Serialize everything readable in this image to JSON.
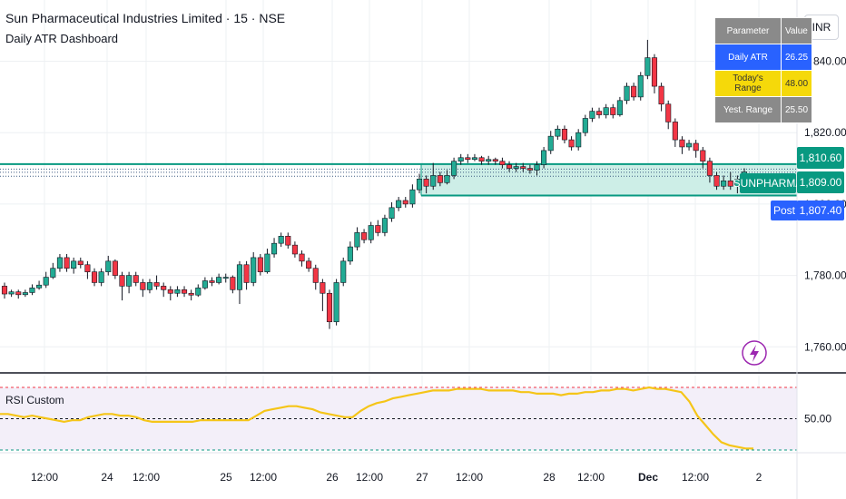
{
  "header": {
    "title": "Sun Pharmaceutical Industries Limited · 15 · NSE",
    "subtitle": "Daily ATR Dashboard"
  },
  "currency_button": "INR",
  "atr_table": {
    "header": [
      "Parameter",
      "Value"
    ],
    "rows": [
      {
        "label": "Daily ATR",
        "value": "26.25",
        "bg": "#2962ff",
        "color": "#ffffff"
      },
      {
        "label": "Today's Range",
        "value": "48.00",
        "bg": "#f5d90a",
        "color": "#333333"
      },
      {
        "label": "Yest. Range",
        "value": "25.50",
        "bg": "#8a8a8a",
        "color": "#ffffff"
      }
    ],
    "header_bg": "#8a8a8a",
    "header_color": "#ffffff"
  },
  "price_tags": {
    "upper": "1,810.60",
    "symbol": "SUNPHARMA",
    "last": "1,809.00",
    "post_label": "Post",
    "post_value": "1,807.40"
  },
  "rsi": {
    "title": "RSI Custom",
    "level_label": "50.00",
    "upper_level": 70,
    "mid_level": 50,
    "lower_level": 30,
    "values": [
      53,
      53,
      52,
      51,
      52,
      51,
      50,
      49,
      48,
      49,
      49,
      51,
      52,
      53,
      53,
      52,
      52,
      51,
      49,
      48,
      48,
      48,
      48,
      48,
      48,
      49,
      49,
      49,
      49,
      49,
      49,
      49,
      52,
      55,
      56,
      57,
      58,
      58,
      57,
      56,
      54,
      53,
      52,
      51,
      51,
      55,
      58,
      60,
      61,
      63,
      64,
      65,
      66,
      67,
      68,
      68,
      68,
      69,
      69,
      69,
      69,
      68,
      68,
      68,
      68,
      67,
      67,
      66,
      66,
      66,
      65,
      66,
      66,
      67,
      67,
      68,
      68,
      69,
      69,
      68,
      69,
      70,
      69,
      69,
      68,
      67,
      61,
      52,
      46,
      40,
      35,
      33,
      32,
      31,
      31
    ]
  },
  "colors": {
    "up": "#22ab94",
    "down": "#f23645",
    "wick": "#131722",
    "rsi_line": "#f5c518",
    "zone_fill": "#cdeee7",
    "zone_border": "#089981",
    "post_tag": "#2962ff",
    "grid": "#eef0f3"
  },
  "chart_data": [
    {
      "type": "candlestick",
      "title": "Sun Pharmaceutical Industries Limited · 15 · NSE",
      "y_axis_ticks": [
        "1,840.00",
        "1,820.00",
        "1,800.00",
        "1,780.00",
        "1,760.00"
      ],
      "x_axis_ticks": [
        "12:00",
        "24",
        "12:00",
        "25",
        "12:00",
        "26",
        "12:00",
        "27",
        "12:00",
        "28",
        "12:00",
        "Dec",
        "12:00",
        "2"
      ],
      "ylim": [
        1756,
        1847
      ],
      "candles": [
        {
          "o": 1777.0,
          "c": 1774.8,
          "h": 1778.0,
          "l": 1773.5
        },
        {
          "o": 1774.8,
          "c": 1775.4,
          "h": 1776.0,
          "l": 1774.0
        },
        {
          "o": 1775.4,
          "c": 1774.6,
          "h": 1776.0,
          "l": 1773.5
        },
        {
          "o": 1774.6,
          "c": 1775.2,
          "h": 1776.0,
          "l": 1774.0
        },
        {
          "o": 1775.2,
          "c": 1776.5,
          "h": 1777.5,
          "l": 1774.5
        },
        {
          "o": 1776.5,
          "c": 1777.3,
          "h": 1778.5,
          "l": 1776.0
        },
        {
          "o": 1777.3,
          "c": 1779.5,
          "h": 1781.0,
          "l": 1776.5
        },
        {
          "o": 1779.5,
          "c": 1782.0,
          "h": 1783.5,
          "l": 1779.0
        },
        {
          "o": 1782.0,
          "c": 1785.0,
          "h": 1786.0,
          "l": 1781.0
        },
        {
          "o": 1785.0,
          "c": 1782.0,
          "h": 1786.0,
          "l": 1781.0
        },
        {
          "o": 1782.0,
          "c": 1784.0,
          "h": 1785.0,
          "l": 1780.5
        },
        {
          "o": 1784.0,
          "c": 1783.0,
          "h": 1785.0,
          "l": 1782.0
        },
        {
          "o": 1783.0,
          "c": 1781.0,
          "h": 1784.0,
          "l": 1779.0
        },
        {
          "o": 1781.0,
          "c": 1778.0,
          "h": 1782.0,
          "l": 1777.0
        },
        {
          "o": 1778.0,
          "c": 1781.0,
          "h": 1782.0,
          "l": 1777.0
        },
        {
          "o": 1781.0,
          "c": 1784.0,
          "h": 1785.5,
          "l": 1780.0
        },
        {
          "o": 1784.0,
          "c": 1780.0,
          "h": 1784.5,
          "l": 1779.0
        },
        {
          "o": 1780.0,
          "c": 1777.0,
          "h": 1781.0,
          "l": 1773.0
        },
        {
          "o": 1777.0,
          "c": 1780.0,
          "h": 1781.0,
          "l": 1775.0
        },
        {
          "o": 1780.0,
          "c": 1778.0,
          "h": 1781.0,
          "l": 1777.0
        },
        {
          "o": 1778.0,
          "c": 1776.0,
          "h": 1779.0,
          "l": 1774.0
        },
        {
          "o": 1776.0,
          "c": 1778.0,
          "h": 1779.0,
          "l": 1775.0
        },
        {
          "o": 1778.0,
          "c": 1777.0,
          "h": 1780.0,
          "l": 1776.0
        },
        {
          "o": 1777.0,
          "c": 1776.0,
          "h": 1778.0,
          "l": 1774.0
        },
        {
          "o": 1776.0,
          "c": 1775.0,
          "h": 1777.0,
          "l": 1773.0
        },
        {
          "o": 1775.0,
          "c": 1776.0,
          "h": 1777.0,
          "l": 1774.0
        },
        {
          "o": 1776.0,
          "c": 1775.0,
          "h": 1777.0,
          "l": 1774.0
        },
        {
          "o": 1775.0,
          "c": 1774.5,
          "h": 1776.0,
          "l": 1773.0
        },
        {
          "o": 1774.5,
          "c": 1776.5,
          "h": 1777.5,
          "l": 1774.0
        },
        {
          "o": 1776.5,
          "c": 1778.5,
          "h": 1779.5,
          "l": 1776.0
        },
        {
          "o": 1778.5,
          "c": 1778.0,
          "h": 1779.5,
          "l": 1777.0
        },
        {
          "o": 1778.0,
          "c": 1779.5,
          "h": 1780.5,
          "l": 1777.5
        },
        {
          "o": 1779.5,
          "c": 1779.5,
          "h": 1780.5,
          "l": 1778.0
        },
        {
          "o": 1779.5,
          "c": 1776.0,
          "h": 1780.0,
          "l": 1775.0
        },
        {
          "o": 1776.0,
          "c": 1783.0,
          "h": 1784.0,
          "l": 1772.0
        },
        {
          "o": 1783.0,
          "c": 1778.0,
          "h": 1784.0,
          "l": 1776.0
        },
        {
          "o": 1778.0,
          "c": 1785.0,
          "h": 1786.5,
          "l": 1777.0
        },
        {
          "o": 1785.0,
          "c": 1781.0,
          "h": 1786.0,
          "l": 1780.0
        },
        {
          "o": 1781.0,
          "c": 1786.0,
          "h": 1787.5,
          "l": 1780.5
        },
        {
          "o": 1786.0,
          "c": 1789.0,
          "h": 1790.5,
          "l": 1785.0
        },
        {
          "o": 1789.0,
          "c": 1791.0,
          "h": 1792.0,
          "l": 1788.0
        },
        {
          "o": 1791.0,
          "c": 1788.5,
          "h": 1792.0,
          "l": 1787.5
        },
        {
          "o": 1788.5,
          "c": 1786.0,
          "h": 1789.5,
          "l": 1785.0
        },
        {
          "o": 1786.0,
          "c": 1784.0,
          "h": 1787.0,
          "l": 1782.5
        },
        {
          "o": 1784.0,
          "c": 1782.0,
          "h": 1785.0,
          "l": 1781.0
        },
        {
          "o": 1782.0,
          "c": 1778.0,
          "h": 1783.0,
          "l": 1776.0
        },
        {
          "o": 1778.0,
          "c": 1775.0,
          "h": 1779.0,
          "l": 1770.0
        },
        {
          "o": 1775.0,
          "c": 1767.0,
          "h": 1776.0,
          "l": 1765.0
        },
        {
          "o": 1767.0,
          "c": 1778.0,
          "h": 1779.0,
          "l": 1766.0
        },
        {
          "o": 1778.0,
          "c": 1784.0,
          "h": 1785.0,
          "l": 1777.0
        },
        {
          "o": 1784.0,
          "c": 1788.0,
          "h": 1789.5,
          "l": 1783.0
        },
        {
          "o": 1788.0,
          "c": 1792.0,
          "h": 1793.5,
          "l": 1787.0
        },
        {
          "o": 1792.0,
          "c": 1790.0,
          "h": 1793.0,
          "l": 1789.0
        },
        {
          "o": 1790.0,
          "c": 1794.0,
          "h": 1795.0,
          "l": 1789.0
        },
        {
          "o": 1794.0,
          "c": 1792.0,
          "h": 1795.5,
          "l": 1791.0
        },
        {
          "o": 1792.0,
          "c": 1796.0,
          "h": 1797.0,
          "l": 1791.0
        },
        {
          "o": 1796.0,
          "c": 1799.0,
          "h": 1800.5,
          "l": 1795.0
        },
        {
          "o": 1799.0,
          "c": 1801.0,
          "h": 1802.0,
          "l": 1798.0
        },
        {
          "o": 1801.0,
          "c": 1800.0,
          "h": 1802.0,
          "l": 1799.0
        },
        {
          "o": 1800.0,
          "c": 1804.0,
          "h": 1805.5,
          "l": 1799.0
        },
        {
          "o": 1804.0,
          "c": 1807.0,
          "h": 1808.5,
          "l": 1803.0
        },
        {
          "o": 1807.0,
          "c": 1805.0,
          "h": 1808.0,
          "l": 1803.0
        },
        {
          "o": 1805.0,
          "c": 1808.0,
          "h": 1811.5,
          "l": 1804.0
        },
        {
          "o": 1808.0,
          "c": 1806.0,
          "h": 1809.0,
          "l": 1805.0
        },
        {
          "o": 1806.0,
          "c": 1808.0,
          "h": 1809.5,
          "l": 1805.5
        },
        {
          "o": 1808.0,
          "c": 1812.0,
          "h": 1813.0,
          "l": 1807.0
        },
        {
          "o": 1812.0,
          "c": 1813.0,
          "h": 1814.0,
          "l": 1811.0
        },
        {
          "o": 1813.0,
          "c": 1812.5,
          "h": 1814.0,
          "l": 1811.5
        },
        {
          "o": 1812.5,
          "c": 1813.0,
          "h": 1814.0,
          "l": 1812.0
        },
        {
          "o": 1813.0,
          "c": 1812.0,
          "h": 1813.5,
          "l": 1811.0
        },
        {
          "o": 1812.0,
          "c": 1812.5,
          "h": 1813.5,
          "l": 1811.0
        },
        {
          "o": 1812.5,
          "c": 1812.0,
          "h": 1813.0,
          "l": 1811.0
        },
        {
          "o": 1812.0,
          "c": 1811.0,
          "h": 1813.0,
          "l": 1810.0
        },
        {
          "o": 1811.0,
          "c": 1810.0,
          "h": 1812.0,
          "l": 1809.0
        },
        {
          "o": 1810.0,
          "c": 1810.5,
          "h": 1811.5,
          "l": 1809.0
        },
        {
          "o": 1810.5,
          "c": 1810.0,
          "h": 1811.5,
          "l": 1809.0
        },
        {
          "o": 1810.0,
          "c": 1809.5,
          "h": 1811.0,
          "l": 1808.5
        },
        {
          "o": 1809.5,
          "c": 1811.0,
          "h": 1812.0,
          "l": 1808.0
        },
        {
          "o": 1811.0,
          "c": 1815.0,
          "h": 1816.0,
          "l": 1810.0
        },
        {
          "o": 1815.0,
          "c": 1819.0,
          "h": 1820.5,
          "l": 1814.0
        },
        {
          "o": 1819.0,
          "c": 1821.0,
          "h": 1822.0,
          "l": 1818.0
        },
        {
          "o": 1821.0,
          "c": 1818.0,
          "h": 1822.0,
          "l": 1817.0
        },
        {
          "o": 1818.0,
          "c": 1816.0,
          "h": 1819.0,
          "l": 1815.0
        },
        {
          "o": 1816.0,
          "c": 1820.0,
          "h": 1821.0,
          "l": 1815.0
        },
        {
          "o": 1820.0,
          "c": 1824.0,
          "h": 1825.0,
          "l": 1819.0
        },
        {
          "o": 1824.0,
          "c": 1826.0,
          "h": 1827.0,
          "l": 1823.0
        },
        {
          "o": 1826.0,
          "c": 1825.0,
          "h": 1827.0,
          "l": 1824.0
        },
        {
          "o": 1825.0,
          "c": 1827.0,
          "h": 1828.0,
          "l": 1824.0
        },
        {
          "o": 1827.0,
          "c": 1825.0,
          "h": 1828.0,
          "l": 1824.0
        },
        {
          "o": 1825.0,
          "c": 1829.0,
          "h": 1830.0,
          "l": 1824.5
        },
        {
          "o": 1829.0,
          "c": 1833.0,
          "h": 1834.0,
          "l": 1828.0
        },
        {
          "o": 1833.0,
          "c": 1830.0,
          "h": 1834.0,
          "l": 1829.0
        },
        {
          "o": 1830.0,
          "c": 1836.0,
          "h": 1837.0,
          "l": 1829.0
        },
        {
          "o": 1836.0,
          "c": 1841.0,
          "h": 1846.0,
          "l": 1835.0
        },
        {
          "o": 1841.0,
          "c": 1833.0,
          "h": 1842.0,
          "l": 1831.0
        },
        {
          "o": 1833.0,
          "c": 1828.0,
          "h": 1834.0,
          "l": 1826.0
        },
        {
          "o": 1828.0,
          "c": 1823.0,
          "h": 1829.0,
          "l": 1821.0
        },
        {
          "o": 1823.0,
          "c": 1818.0,
          "h": 1824.0,
          "l": 1816.0
        },
        {
          "o": 1818.0,
          "c": 1816.0,
          "h": 1819.0,
          "l": 1814.0
        },
        {
          "o": 1816.0,
          "c": 1817.0,
          "h": 1818.0,
          "l": 1815.0
        },
        {
          "o": 1817.0,
          "c": 1815.0,
          "h": 1818.0,
          "l": 1813.0
        },
        {
          "o": 1815.0,
          "c": 1812.0,
          "h": 1816.0,
          "l": 1810.0
        },
        {
          "o": 1812.0,
          "c": 1808.0,
          "h": 1813.0,
          "l": 1806.0
        },
        {
          "o": 1808.0,
          "c": 1805.0,
          "h": 1809.0,
          "l": 1804.0
        },
        {
          "o": 1805.0,
          "c": 1806.5,
          "h": 1808.0,
          "l": 1804.0
        },
        {
          "o": 1806.5,
          "c": 1805.0,
          "h": 1809.0,
          "l": 1804.0
        },
        {
          "o": 1805.0,
          "c": 1807.0,
          "h": 1808.0,
          "l": 1803.0
        },
        {
          "o": 1807.0,
          "c": 1809.0,
          "h": 1810.0,
          "l": 1806.0
        }
      ]
    },
    {
      "type": "line",
      "title": "RSI Custom",
      "y_axis_ticks": [
        "50.00"
      ],
      "levels": [
        70,
        50,
        30
      ],
      "series": [
        {
          "name": "RSI Custom",
          "values_ref": "rsi.values"
        }
      ]
    }
  ]
}
